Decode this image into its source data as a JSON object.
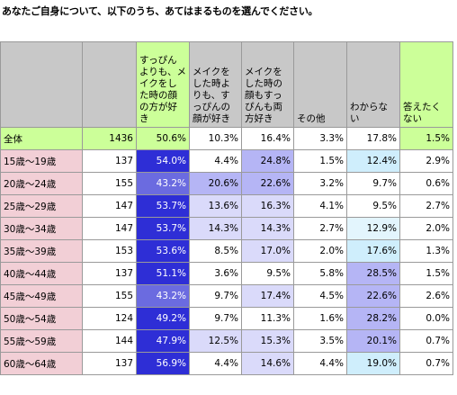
{
  "title": "あなたご自身について、以下のうち、あてはまるものを選んでください。",
  "header": {
    "row_label": "",
    "n": "",
    "columns": [
      "すっぴんよりも、メイクをした時の顔の方が好き",
      "メイクをした時よりも、すっぴんの顔が好き",
      "メイクをした時の顔もすっぴんも両方好き",
      "その他",
      "わからない",
      "答えたくない"
    ]
  },
  "rows": [
    {
      "label": "全体",
      "n": "1436",
      "values": [
        "50.6%",
        "10.3%",
        "16.4%",
        "3.3%",
        "17.8%",
        "1.5%"
      ]
    },
    {
      "label": "15歳～19歳",
      "n": "137",
      "values": [
        "54.0%",
        "4.4%",
        "24.8%",
        "1.5%",
        "12.4%",
        "2.9%"
      ]
    },
    {
      "label": "20歳～24歳",
      "n": "155",
      "values": [
        "43.2%",
        "20.6%",
        "22.6%",
        "3.2%",
        "9.7%",
        "0.6%"
      ]
    },
    {
      "label": "25歳～29歳",
      "n": "147",
      "values": [
        "53.7%",
        "13.6%",
        "16.3%",
        "4.1%",
        "9.5%",
        "2.7%"
      ]
    },
    {
      "label": "30歳～34歳",
      "n": "147",
      "values": [
        "53.7%",
        "14.3%",
        "14.3%",
        "2.7%",
        "12.9%",
        "2.0%"
      ]
    },
    {
      "label": "35歳～39歳",
      "n": "153",
      "values": [
        "53.6%",
        "8.5%",
        "17.0%",
        "2.0%",
        "17.6%",
        "1.3%"
      ]
    },
    {
      "label": "40歳～44歳",
      "n": "137",
      "values": [
        "51.1%",
        "3.6%",
        "9.5%",
        "5.8%",
        "28.5%",
        "1.5%"
      ]
    },
    {
      "label": "45歳～49歳",
      "n": "155",
      "values": [
        "43.2%",
        "9.7%",
        "17.4%",
        "4.5%",
        "22.6%",
        "2.6%"
      ]
    },
    {
      "label": "50歳～54歳",
      "n": "124",
      "values": [
        "49.2%",
        "9.7%",
        "11.3%",
        "1.6%",
        "28.2%",
        "0.0%"
      ]
    },
    {
      "label": "55歳～59歳",
      "n": "144",
      "values": [
        "47.9%",
        "12.5%",
        "15.3%",
        "3.5%",
        "20.1%",
        "0.7%"
      ]
    },
    {
      "label": "60歳～64歳",
      "n": "137",
      "values": [
        "56.9%",
        "4.4%",
        "14.6%",
        "4.4%",
        "19.0%",
        "0.7%"
      ]
    }
  ],
  "colors": {
    "header_gray": "#c8c8c8",
    "header_green": "#ccff99",
    "total_row": "#ccff99",
    "age_label_pink": "#f2cfd6",
    "dark_blue": "#2e2ed6",
    "mid_blue": "#6b6be0",
    "light_blue": "#b5b5f5",
    "pale_blue": "#dadafa",
    "cyan_light": "#cfeefc",
    "cyan_pale": "#e3f5fd"
  },
  "cell_shading": [
    [
      null,
      null,
      null,
      null,
      null,
      null
    ],
    [
      "dark_blue",
      null,
      "light_blue",
      null,
      "cyan_light",
      null
    ],
    [
      "mid_blue",
      "light_blue",
      "light_blue",
      null,
      null,
      null
    ],
    [
      "dark_blue",
      "pale_blue",
      "pale_blue",
      null,
      null,
      null
    ],
    [
      "dark_blue",
      "pale_blue",
      "pale_blue",
      null,
      "cyan_pale",
      null
    ],
    [
      "dark_blue",
      null,
      "pale_blue",
      null,
      "cyan_light",
      null
    ],
    [
      "dark_blue",
      null,
      null,
      null,
      "light_blue",
      null
    ],
    [
      "mid_blue",
      null,
      "pale_blue",
      null,
      "light_blue",
      null
    ],
    [
      "dark_blue",
      null,
      null,
      null,
      "light_blue",
      null
    ],
    [
      "dark_blue",
      "pale_blue",
      "pale_blue",
      null,
      "light_blue",
      null
    ],
    [
      "dark_blue",
      null,
      "pale_blue",
      null,
      "cyan_light",
      null
    ]
  ]
}
